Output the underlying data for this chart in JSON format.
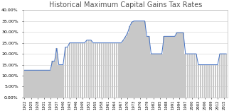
{
  "title": "Historical Maximum Capital Gains Tax Rates",
  "years": [
    1922,
    1923,
    1924,
    1925,
    1926,
    1927,
    1928,
    1929,
    1930,
    1931,
    1932,
    1933,
    1934,
    1935,
    1936,
    1937,
    1938,
    1939,
    1940,
    1941,
    1942,
    1943,
    1944,
    1945,
    1946,
    1947,
    1948,
    1949,
    1950,
    1951,
    1952,
    1953,
    1954,
    1955,
    1956,
    1957,
    1958,
    1959,
    1960,
    1961,
    1962,
    1963,
    1964,
    1965,
    1966,
    1967,
    1968,
    1969,
    1970,
    1971,
    1972,
    1973,
    1974,
    1975,
    1976,
    1977,
    1978,
    1979,
    1980,
    1981,
    1982,
    1983,
    1984,
    1985,
    1986,
    1987,
    1988,
    1989,
    1990,
    1991,
    1992,
    1993,
    1994,
    1995,
    1996,
    1997,
    1998,
    1999,
    2000,
    2001,
    2002,
    2003,
    2004,
    2005,
    2006,
    2007,
    2008,
    2009,
    2010,
    2011,
    2012,
    2013,
    2014,
    2015,
    2016
  ],
  "rates": [
    0.125,
    0.125,
    0.125,
    0.125,
    0.125,
    0.125,
    0.125,
    0.125,
    0.125,
    0.125,
    0.125,
    0.125,
    0.125,
    0.1667,
    0.1667,
    0.225,
    0.15,
    0.15,
    0.15,
    0.23,
    0.23,
    0.25,
    0.25,
    0.25,
    0.25,
    0.25,
    0.25,
    0.25,
    0.25,
    0.2625,
    0.2625,
    0.2625,
    0.25,
    0.25,
    0.25,
    0.25,
    0.25,
    0.25,
    0.25,
    0.25,
    0.25,
    0.25,
    0.25,
    0.25,
    0.25,
    0.25,
    0.2625,
    0.2775,
    0.295,
    0.325,
    0.345,
    0.35,
    0.35,
    0.35,
    0.35,
    0.35,
    0.35,
    0.28,
    0.28,
    0.2,
    0.2,
    0.2,
    0.2,
    0.2,
    0.2,
    0.28,
    0.28,
    0.28,
    0.28,
    0.28,
    0.28,
    0.2963,
    0.2963,
    0.2963,
    0.2963,
    0.2,
    0.2,
    0.2,
    0.2,
    0.2,
    0.2,
    0.15,
    0.15,
    0.15,
    0.15,
    0.15,
    0.15,
    0.15,
    0.15,
    0.15,
    0.15,
    0.2,
    0.2,
    0.2,
    0.2
  ],
  "bar_color": "#c8c8c8",
  "line_color": "#4472c4",
  "ylim": [
    0,
    0.4
  ],
  "yticks": [
    0.0,
    0.05,
    0.1,
    0.15,
    0.2,
    0.25,
    0.3,
    0.35,
    0.4
  ],
  "ytick_labels": [
    "0.00%",
    "5.00%",
    "10.00%",
    "15.00%",
    "20.00%",
    "25.00%",
    "30.00%",
    "35.00%",
    "40.00%"
  ],
  "bg_color": "#ffffff",
  "grid_color": "#d9d9d9",
  "title_fontsize": 7,
  "tick_fontsize": 4.5,
  "xtick_fontsize": 3.8,
  "xtick_step": 3
}
